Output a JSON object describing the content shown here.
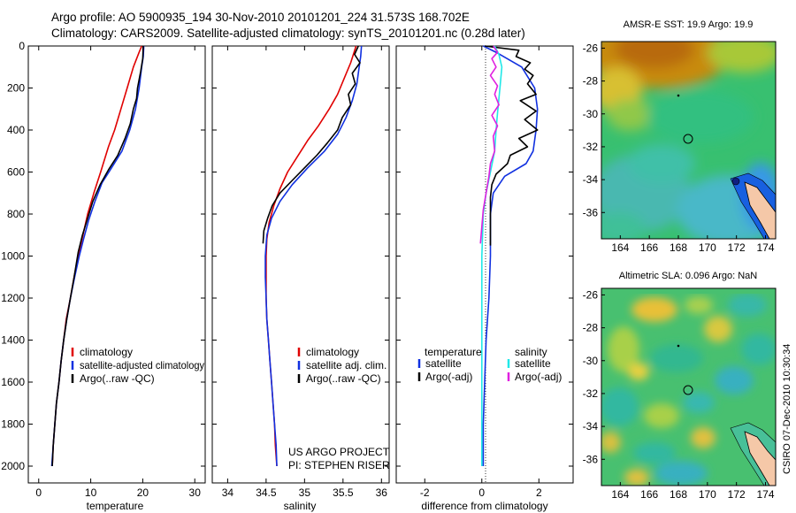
{
  "header": {
    "line1": "Argo profile: AO 5900935_194 30-Nov-2010 20101201_224 31.573S 168.702E",
    "line2": "Climatology: CARS2009. Satellite-adjusted climatology: synTS_20101201.nc (0.28d later)"
  },
  "side_label": "CSIRO 07-Dec-2010 10:30:34",
  "credit": {
    "line1": "US ARGO PROJECT",
    "line2": "PI: STEPHEN RISER"
  },
  "colors": {
    "red": "#e00000",
    "blue": "#1030e0",
    "black": "#000000",
    "cyan": "#20e8e8",
    "magenta": "#e020e0",
    "land": "#f5c8a8"
  },
  "chart_data": [
    {
      "type": "line",
      "xlabel": "temperature",
      "ylabel": "",
      "xlim": [
        -2,
        32
      ],
      "ylim": [
        2080,
        0
      ],
      "xticks": [
        "0",
        "10",
        "20",
        "30"
      ],
      "yticks": [
        "0",
        "200",
        "400",
        "600",
        "800",
        "1000",
        "1200",
        "1400",
        "1600",
        "1800",
        "2000"
      ],
      "legend": [
        "climatology",
        "satellite-adjusted climatology",
        "Argo(..raw -QC)"
      ],
      "series": [
        {
          "name": "climatology",
          "color": "red",
          "points": [
            [
              19.8,
              0
            ],
            [
              19.3,
              30
            ],
            [
              18.2,
              100
            ],
            [
              17.0,
              200
            ],
            [
              15.8,
              300
            ],
            [
              14.6,
              400
            ],
            [
              13.4,
              480
            ],
            [
              11.9,
              600
            ],
            [
              10.6,
              700
            ],
            [
              9.4,
              800
            ],
            [
              8.5,
              900
            ],
            [
              7.6,
              1000
            ],
            [
              6.8,
              1100
            ],
            [
              6.1,
              1200
            ],
            [
              5.3,
              1300
            ],
            [
              4.8,
              1400
            ],
            [
              4.3,
              1500
            ],
            [
              3.9,
              1600
            ],
            [
              3.4,
              1700
            ],
            [
              3.1,
              1800
            ],
            [
              2.8,
              1900
            ],
            [
              2.6,
              2000
            ]
          ]
        },
        {
          "name": "satellite-adjusted climatology",
          "color": "blue",
          "points": [
            [
              20.2,
              0
            ],
            [
              20.1,
              50
            ],
            [
              19.8,
              100
            ],
            [
              19.3,
              200
            ],
            [
              18.6,
              300
            ],
            [
              17.5,
              400
            ],
            [
              16.0,
              500
            ],
            [
              14.0,
              580
            ],
            [
              12.2,
              650
            ],
            [
              10.8,
              740
            ],
            [
              9.6,
              830
            ],
            [
              8.6,
              920
            ],
            [
              7.8,
              1000
            ],
            [
              6.9,
              1100
            ],
            [
              6.1,
              1200
            ],
            [
              5.4,
              1300
            ],
            [
              4.8,
              1400
            ],
            [
              4.3,
              1500
            ],
            [
              3.9,
              1600
            ],
            [
              3.4,
              1700
            ],
            [
              3.1,
              1800
            ],
            [
              2.8,
              1900
            ],
            [
              2.5,
              2000
            ]
          ]
        },
        {
          "name": "Argo(..raw -QC)",
          "color": "black",
          "points": [
            [
              20.1,
              0
            ],
            [
              20.0,
              60
            ],
            [
              19.6,
              120
            ],
            [
              19.0,
              200
            ],
            [
              18.8,
              250
            ],
            [
              18.2,
              300
            ],
            [
              17.6,
              370
            ],
            [
              16.6,
              440
            ],
            [
              15.2,
              520
            ],
            [
              13.4,
              590
            ],
            [
              11.8,
              660
            ],
            [
              10.4,
              740
            ],
            [
              9.4,
              820
            ],
            [
              8.4,
              900
            ],
            [
              7.6,
              980
            ],
            [
              6.8,
              1100
            ],
            [
              6.1,
              1200
            ],
            [
              5.4,
              1300
            ],
            [
              4.8,
              1400
            ],
            [
              4.3,
              1500
            ],
            [
              3.9,
              1600
            ],
            [
              3.4,
              1700
            ],
            [
              3.1,
              1800
            ],
            [
              2.8,
              1900
            ],
            [
              2.6,
              2000
            ]
          ]
        }
      ]
    },
    {
      "type": "line",
      "xlabel": "salinity",
      "ylabel": "",
      "xlim": [
        33.8,
        36.1
      ],
      "ylim": [
        2080,
        0
      ],
      "xticks": [
        "34",
        "34.5",
        "35",
        "35.5",
        "36"
      ],
      "yticks": [],
      "legend": [
        "climatology",
        "satellite adj. clim.",
        "Argo(..raw -QC)"
      ],
      "series": [
        {
          "name": "climatology",
          "color": "red",
          "points": [
            [
              35.67,
              0
            ],
            [
              35.6,
              80
            ],
            [
              35.52,
              150
            ],
            [
              35.43,
              230
            ],
            [
              35.32,
              300
            ],
            [
              35.18,
              380
            ],
            [
              35.04,
              450
            ],
            [
              34.9,
              530
            ],
            [
              34.78,
              600
            ],
            [
              34.68,
              680
            ],
            [
              34.6,
              760
            ],
            [
              34.54,
              840
            ],
            [
              34.51,
              920
            ],
            [
              34.5,
              1000
            ],
            [
              34.5,
              1100
            ],
            [
              34.5,
              1200
            ],
            [
              34.51,
              1300
            ],
            [
              34.53,
              1400
            ],
            [
              34.55,
              1500
            ],
            [
              34.57,
              1600
            ],
            [
              34.59,
              1700
            ],
            [
              34.61,
              1800
            ],
            [
              34.62,
              1900
            ],
            [
              34.64,
              2000
            ]
          ]
        },
        {
          "name": "satellite adj. clim.",
          "color": "blue",
          "points": [
            [
              35.74,
              0
            ],
            [
              35.73,
              50
            ],
            [
              35.71,
              100
            ],
            [
              35.68,
              180
            ],
            [
              35.62,
              260
            ],
            [
              35.54,
              340
            ],
            [
              35.43,
              420
            ],
            [
              35.26,
              500
            ],
            [
              35.04,
              580
            ],
            [
              34.84,
              660
            ],
            [
              34.68,
              740
            ],
            [
              34.57,
              820
            ],
            [
              34.51,
              900
            ],
            [
              34.49,
              1000
            ],
            [
              34.49,
              1100
            ],
            [
              34.5,
              1200
            ],
            [
              34.51,
              1300
            ],
            [
              34.53,
              1400
            ],
            [
              34.55,
              1500
            ],
            [
              34.57,
              1600
            ],
            [
              34.59,
              1700
            ],
            [
              34.61,
              1800
            ],
            [
              34.63,
              1900
            ],
            [
              34.64,
              2000
            ]
          ]
        },
        {
          "name": "Argo(..raw -QC)",
          "color": "black",
          "points": [
            [
              35.7,
              0
            ],
            [
              35.65,
              40
            ],
            [
              35.72,
              80
            ],
            [
              35.62,
              130
            ],
            [
              35.66,
              180
            ],
            [
              35.57,
              230
            ],
            [
              35.6,
              280
            ],
            [
              35.49,
              340
            ],
            [
              35.43,
              400
            ],
            [
              35.3,
              460
            ],
            [
              35.16,
              520
            ],
            [
              35.0,
              580
            ],
            [
              34.84,
              640
            ],
            [
              34.68,
              700
            ],
            [
              34.58,
              760
            ],
            [
              34.52,
              820
            ],
            [
              34.47,
              880
            ],
            [
              34.46,
              940
            ]
          ]
        }
      ]
    },
    {
      "type": "line",
      "xlabel": "difference from climatology",
      "ylabel": "",
      "xlim": [
        -3,
        3.2
      ],
      "ylim": [
        2080,
        0
      ],
      "xticks": [
        "-2",
        "0",
        "2"
      ],
      "yticks": [],
      "legend_groups": [
        {
          "title": "temperature",
          "items": [
            "satellite",
            "Argo(-adj)"
          ]
        },
        {
          "title": "salinity",
          "items": [
            "satellite",
            "Argo(-adj)"
          ]
        }
      ],
      "series": [
        {
          "name": "temperature satellite",
          "color": "blue",
          "points": [
            [
              0.05,
              0
            ],
            [
              0.5,
              30
            ],
            [
              1.4,
              100
            ],
            [
              1.85,
              200
            ],
            [
              1.95,
              300
            ],
            [
              1.9,
              400
            ],
            [
              1.8,
              500
            ],
            [
              1.55,
              560
            ],
            [
              0.8,
              620
            ],
            [
              0.4,
              700
            ],
            [
              0.3,
              800
            ],
            [
              0.3,
              900
            ],
            [
              0.3,
              1000
            ],
            [
              0.25,
              1200
            ],
            [
              0.15,
              1400
            ],
            [
              0.1,
              1600
            ],
            [
              0.05,
              1800
            ],
            [
              0.05,
              2000
            ]
          ]
        },
        {
          "name": "temperature Argo(-adj)",
          "color": "black",
          "points": [
            [
              0.1,
              0
            ],
            [
              1.3,
              20
            ],
            [
              1.2,
              50
            ],
            [
              1.7,
              80
            ],
            [
              1.5,
              110
            ],
            [
              1.8,
              140
            ],
            [
              1.6,
              180
            ],
            [
              1.9,
              230
            ],
            [
              1.35,
              260
            ],
            [
              1.9,
              310
            ],
            [
              1.5,
              350
            ],
            [
              1.95,
              400
            ],
            [
              1.3,
              440
            ],
            [
              1.6,
              480
            ],
            [
              1.0,
              520
            ],
            [
              0.9,
              560
            ],
            [
              0.5,
              610
            ],
            [
              0.35,
              660
            ],
            [
              0.3,
              720
            ],
            [
              0.3,
              820
            ],
            [
              0.3,
              900
            ],
            [
              0.3,
              950
            ]
          ]
        },
        {
          "name": "salinity satellite",
          "color": "cyan",
          "points": [
            [
              0.45,
              0
            ],
            [
              0.6,
              40
            ],
            [
              0.7,
              100
            ],
            [
              0.65,
              180
            ],
            [
              0.6,
              250
            ],
            [
              0.55,
              320
            ],
            [
              0.5,
              400
            ],
            [
              0.45,
              500
            ],
            [
              0.3,
              600
            ],
            [
              0.15,
              700
            ],
            [
              0.05,
              800
            ],
            [
              0.0,
              1000
            ],
            [
              0.0,
              1500
            ],
            [
              0.0,
              2000
            ]
          ]
        },
        {
          "name": "salinity Argo(-adj)",
          "color": "magenta",
          "points": [
            [
              0.4,
              0
            ],
            [
              0.55,
              30
            ],
            [
              0.35,
              60
            ],
            [
              0.5,
              100
            ],
            [
              0.3,
              140
            ],
            [
              0.55,
              190
            ],
            [
              0.45,
              230
            ],
            [
              0.6,
              280
            ],
            [
              0.35,
              330
            ],
            [
              0.55,
              380
            ],
            [
              0.4,
              430
            ],
            [
              0.45,
              500
            ],
            [
              0.3,
              560
            ],
            [
              0.25,
              620
            ],
            [
              0.15,
              700
            ],
            [
              0.05,
              780
            ],
            [
              0.0,
              860
            ],
            [
              -0.05,
              940
            ]
          ]
        }
      ]
    },
    {
      "type": "heatmap",
      "title": "AMSR-E SST: 19.9 Argo: 19.9",
      "xlim": [
        162.7,
        174.7
      ],
      "ylim": [
        -37.6,
        -25.6
      ],
      "xticks": [
        "164",
        "166",
        "168",
        "170",
        "172",
        "174"
      ],
      "yticks": [
        "-26",
        "-28",
        "-30",
        "-32",
        "-34",
        "-36"
      ],
      "float_position": [
        168.7,
        -31.57
      ]
    },
    {
      "type": "heatmap",
      "title": "Altimetric SLA: 0.096 Argo: NaN",
      "xlim": [
        162.7,
        174.7
      ],
      "ylim": [
        -37.6,
        -25.6
      ],
      "xticks": [
        "164",
        "166",
        "168",
        "170",
        "172",
        "174"
      ],
      "yticks": [
        "-26",
        "-28",
        "-30",
        "-32",
        "-34",
        "-36"
      ],
      "float_position": [
        168.7,
        -31.57
      ]
    }
  ]
}
